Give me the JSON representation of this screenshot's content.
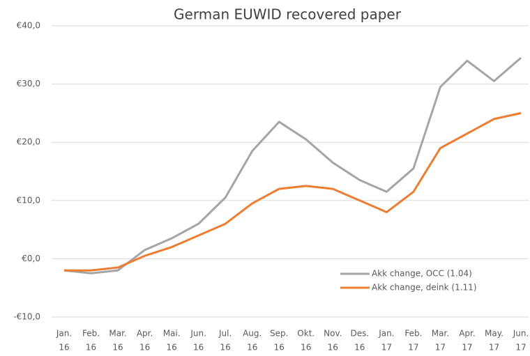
{
  "chart_data": {
    "type": "line",
    "title": "German EUWID recovered paper",
    "categories": [
      [
        "Jan.",
        "16"
      ],
      [
        "Feb.",
        "16"
      ],
      [
        "Mar.",
        "16"
      ],
      [
        "Apr.",
        "16"
      ],
      [
        "Mai.",
        "16"
      ],
      [
        "Jun.",
        "16"
      ],
      [
        "Jul.",
        "16"
      ],
      [
        "Aug.",
        "16"
      ],
      [
        "Sep.",
        "16"
      ],
      [
        "Okt.",
        "16"
      ],
      [
        "Nov.",
        "16"
      ],
      [
        "Des.",
        "16"
      ],
      [
        "Jan.",
        "17"
      ],
      [
        "Feb.",
        "17"
      ],
      [
        "Mar.",
        "17"
      ],
      [
        "Apr.",
        "17"
      ],
      [
        "May.",
        "17"
      ],
      [
        "Jun.",
        "17"
      ]
    ],
    "series": [
      {
        "name": "Akk change, OCC (1.04)",
        "color": "#a5a5a5",
        "values": [
          -2,
          -2.5,
          -2,
          1.5,
          3.5,
          6,
          10.5,
          18.5,
          23.5,
          20.5,
          16.5,
          13.5,
          11.5,
          15.5,
          29.5,
          34,
          30.5,
          34.5
        ]
      },
      {
        "name": "Akk change, deink (1.11)",
        "color": "#ed7d31",
        "values": [
          -2,
          -2,
          -1.5,
          0.5,
          2,
          4,
          6,
          9.5,
          12,
          12.5,
          12,
          10,
          8,
          11.5,
          19,
          21.5,
          24,
          25
        ]
      }
    ],
    "ylim": [
      -10,
      40
    ],
    "yticks": [
      {
        "value": -10,
        "label": "-€10,0"
      },
      {
        "value": 0,
        "label": "€0,0"
      },
      {
        "value": 10,
        "label": "€10,0"
      },
      {
        "value": 20,
        "label": "€20,0"
      },
      {
        "value": 30,
        "label": "€30,0"
      },
      {
        "value": 40,
        "label": "€40,0"
      }
    ],
    "grid": true,
    "legend": "lower right"
  }
}
